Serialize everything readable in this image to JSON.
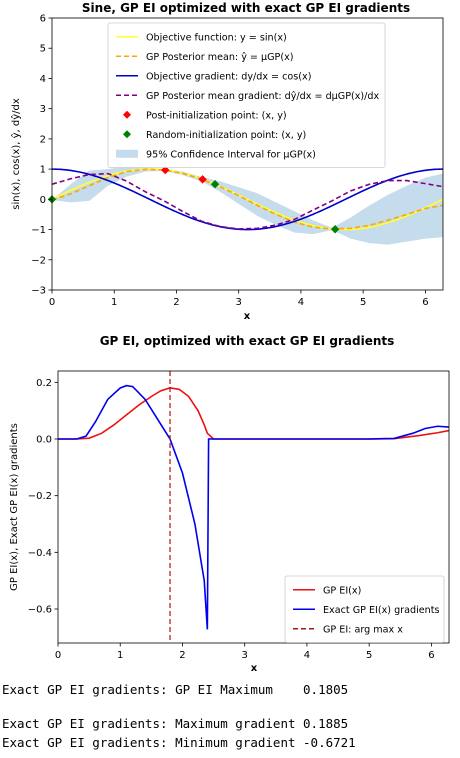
{
  "chart_data": [
    {
      "type": "line",
      "title": "Sine, GP EI optimized with exact GP EI gradients",
      "xlabel": "x",
      "ylabel": "sin(x), cos(x), ŷ, dŷ/dx",
      "xlim": [
        0,
        6.283
      ],
      "ylim": [
        -3,
        6
      ],
      "xticks": [
        0,
        1,
        2,
        3,
        4,
        5,
        6
      ],
      "yticks": [
        -3,
        -2,
        -1,
        0,
        1,
        2,
        3,
        4,
        5,
        6
      ],
      "legend_position": "top-center",
      "series": [
        {
          "name": "Objective function: y = sin(x)",
          "color": "#ffff33",
          "style": "solid",
          "func": "sin"
        },
        {
          "name": "GP Posterior mean: ŷ = μGP(x)",
          "color": "#ffa500",
          "style": "dashed",
          "x": [
            0,
            0.3,
            0.6,
            0.9,
            1.2,
            1.5,
            1.8,
            2.1,
            2.4,
            2.7,
            3.0,
            3.3,
            3.6,
            3.9,
            4.2,
            4.5,
            4.8,
            5.1,
            5.4,
            5.7,
            6.0,
            6.283
          ],
          "y": [
            -0.02,
            0.18,
            0.45,
            0.72,
            0.92,
            0.99,
            0.97,
            0.86,
            0.67,
            0.42,
            0.12,
            -0.2,
            -0.5,
            -0.76,
            -0.92,
            -0.98,
            -0.96,
            -0.86,
            -0.69,
            -0.5,
            -0.3,
            -0.2
          ]
        },
        {
          "name": "Objective gradient: dy/dx = cos(x)",
          "color": "#0000cc",
          "style": "solid",
          "func": "cos"
        },
        {
          "name": "GP Posterior mean gradient: dŷ/dx = dμGP(x)/dx",
          "color": "#800080",
          "style": "dashed",
          "x": [
            0,
            0.3,
            0.6,
            0.9,
            1.2,
            1.5,
            1.8,
            2.1,
            2.4,
            2.7,
            3.0,
            3.3,
            3.6,
            3.9,
            4.2,
            4.5,
            4.8,
            5.1,
            5.4,
            5.7,
            6.0,
            6.283
          ],
          "y": [
            0.5,
            0.68,
            0.82,
            0.85,
            0.6,
            0.25,
            -0.05,
            -0.4,
            -0.72,
            -0.9,
            -0.98,
            -0.96,
            -0.85,
            -0.66,
            -0.35,
            -0.05,
            0.28,
            0.5,
            0.62,
            0.62,
            0.52,
            0.42
          ]
        },
        {
          "name": "Post-initialization point: (x, y)",
          "color": "#ff0000",
          "marker": "diamond",
          "x": [
            1.82,
            2.42
          ],
          "y": [
            0.97,
            0.66
          ]
        },
        {
          "name": "Random-initialization point: (x, y)",
          "color": "#008000",
          "marker": "diamond",
          "x": [
            0.0,
            2.62,
            4.55
          ],
          "y": [
            0.0,
            0.5,
            -0.99
          ]
        },
        {
          "name": "95% Confidence Interval for μGP(x)",
          "color": "#c5dced",
          "fill": "band",
          "x": [
            0,
            0.3,
            0.6,
            0.9,
            1.2,
            1.5,
            1.8,
            2.1,
            2.4,
            2.7,
            3.0,
            3.3,
            3.6,
            3.9,
            4.2,
            4.5,
            4.8,
            5.1,
            5.4,
            5.7,
            6.0,
            6.283
          ],
          "lower": [
            -0.02,
            -0.1,
            -0.05,
            0.45,
            0.75,
            0.92,
            0.94,
            0.8,
            0.6,
            0.25,
            -0.15,
            -0.55,
            -0.85,
            -1.1,
            -1.15,
            -1.02,
            -1.3,
            -1.45,
            -1.5,
            -1.4,
            -1.3,
            -1.25
          ],
          "upper": [
            -0.02,
            0.5,
            0.95,
            1.0,
            1.09,
            1.06,
            1.0,
            0.92,
            0.74,
            0.6,
            0.4,
            0.2,
            -0.1,
            -0.4,
            -0.7,
            -0.94,
            -0.6,
            -0.2,
            0.15,
            0.45,
            0.72,
            0.85
          ]
        }
      ]
    },
    {
      "type": "line",
      "title": "GP EI, optimized with exact GP EI gradients",
      "xlabel": "x",
      "ylabel": "GP EI(x), Exact GP EI(x) gradients",
      "xlim": [
        0,
        6.283
      ],
      "ylim": [
        -0.72,
        0.24
      ],
      "xticks": [
        0,
        1,
        2,
        3,
        4,
        5,
        6
      ],
      "yticks": [
        0.2,
        0.0,
        -0.2,
        -0.4,
        -0.6
      ],
      "yticklabels": [
        "0.2",
        "0.0",
        "−0.2",
        "−0.4",
        "−0.6"
      ],
      "legend_position": "lower-right",
      "series": [
        {
          "name": "GP EI(x)",
          "color": "#ee1111",
          "style": "solid",
          "x": [
            0,
            0.3,
            0.5,
            0.7,
            0.9,
            1.1,
            1.3,
            1.5,
            1.65,
            1.8,
            1.95,
            2.1,
            2.25,
            2.35,
            2.4,
            2.5,
            3.0,
            4.0,
            5.0,
            5.4,
            5.8,
            6.1,
            6.283
          ],
          "y": [
            0,
            0.0,
            0.003,
            0.02,
            0.05,
            0.085,
            0.12,
            0.15,
            0.17,
            0.1805,
            0.175,
            0.15,
            0.1,
            0.05,
            0.02,
            0.0,
            0.0,
            0.0,
            0.0,
            0.001,
            0.012,
            0.022,
            0.03
          ]
        },
        {
          "name": "Exact GP EI(x) gradients",
          "color": "#0000ee",
          "style": "solid",
          "x": [
            0,
            0.3,
            0.45,
            0.6,
            0.8,
            1.0,
            1.1,
            1.2,
            1.4,
            1.6,
            1.8,
            2.0,
            2.2,
            2.35,
            2.4,
            2.42,
            2.5,
            3.0,
            4.0,
            5.0,
            5.4,
            5.7,
            5.9,
            6.1,
            6.283
          ],
          "y": [
            0,
            0.0,
            0.01,
            0.06,
            0.14,
            0.18,
            0.1885,
            0.185,
            0.14,
            0.07,
            0.0,
            -0.12,
            -0.3,
            -0.5,
            -0.6721,
            0.0,
            0.0,
            0.0,
            0.0,
            0.0,
            0.002,
            0.02,
            0.037,
            0.045,
            0.042
          ]
        },
        {
          "name": "GP EI: arg max x",
          "color": "#aa1111",
          "style": "dashed",
          "vline": 1.8
        }
      ]
    }
  ],
  "console": {
    "line1": "Exact GP EI gradients: GP EI Maximum    0.1805",
    "line2": "Exact GP EI gradients: Maximum gradient 0.1885",
    "line3": "Exact GP EI gradients: Minimum gradient -0.6721"
  }
}
